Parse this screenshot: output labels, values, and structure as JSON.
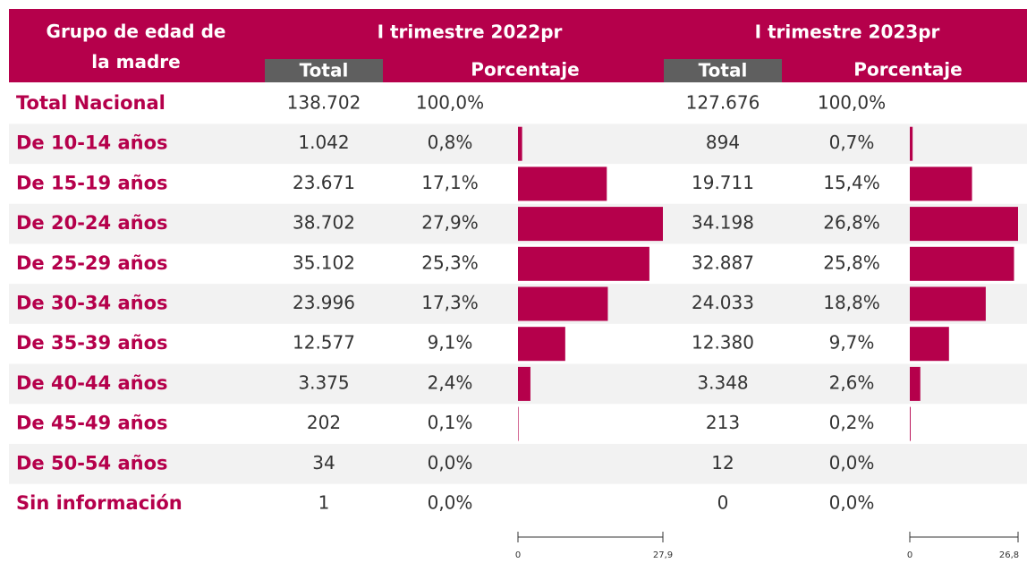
{
  "header": {
    "group": "Grupo de edad de la madre",
    "periods": [
      {
        "title": "I trimestre 2022pr",
        "total": "Total",
        "pct": "Porcentaje"
      },
      {
        "title": "I trimestre 2023pr",
        "total": "Total",
        "pct": "Porcentaje"
      }
    ]
  },
  "total_row": {
    "label": "Total Nacional",
    "cells": [
      "138.702",
      "100,0%",
      "127.676",
      "100,0%"
    ]
  },
  "rows": [
    {
      "label": "De 10-14 años",
      "cells": [
        "1.042",
        "0,8%",
        "894",
        "0,7%"
      ]
    },
    {
      "label": "De 15-19 años",
      "cells": [
        "23.671",
        "17,1%",
        "19.711",
        "15,4%"
      ]
    },
    {
      "label": "De 20-24 años",
      "cells": [
        "38.702",
        "27,9%",
        "34.198",
        "26,8%"
      ]
    },
    {
      "label": "De 25-29 años",
      "cells": [
        "35.102",
        "25,3%",
        "32.887",
        "25,8%"
      ]
    },
    {
      "label": "De 30-34 años",
      "cells": [
        "23.996",
        "17,3%",
        "24.033",
        "18,8%"
      ]
    },
    {
      "label": "De 35-39 años",
      "cells": [
        "12.577",
        "9,1%",
        "12.380",
        "9,7%"
      ]
    },
    {
      "label": "De 40-44 años",
      "cells": [
        "3.375",
        "2,4%",
        "3.348",
        "2,6%"
      ]
    },
    {
      "label": "De 45-49 años",
      "cells": [
        "202",
        "0,1%",
        "213",
        "0,2%"
      ]
    },
    {
      "label": "De 50-54 años",
      "cells": [
        "34",
        "0,0%",
        "12",
        "0,0%"
      ]
    },
    {
      "label": "Sin información",
      "cells": [
        "1",
        "0,0%",
        "0",
        "0,0%"
      ]
    }
  ],
  "bars": [
    {
      "type": "bar",
      "color": "#b5004b",
      "values": [
        0.8,
        17.1,
        27.9,
        25.3,
        17.3,
        9.1,
        2.4,
        0.1,
        0.0,
        0.0
      ],
      "xlim": [
        0,
        27.9
      ],
      "xticks": [
        0,
        {
          "value": 27.9,
          "label": "27,9"
        }
      ]
    },
    {
      "type": "bar",
      "color": "#b5004b",
      "values": [
        0.7,
        15.4,
        26.8,
        25.8,
        18.8,
        9.7,
        2.6,
        0.2,
        0.0,
        0.0
      ],
      "xlim": [
        0,
        26.8
      ],
      "xticks": [
        0,
        {
          "value": 26.8,
          "label": "26,8"
        }
      ]
    }
  ]
}
